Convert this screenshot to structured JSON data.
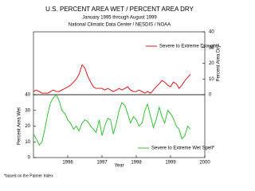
{
  "title": "U.S. PERCENT AREA WET / PERCENT AREA DRY",
  "subtitle": "January 1995 through August 1999",
  "source": "National Climatic Data Center / NESDIS / NOAA",
  "footnote": "*based on the Palmer Index",
  "chart_data": [
    {
      "type": "line",
      "ylabel": "Percent Area Dry",
      "y_axis_side": "right",
      "xlim": [
        1995,
        2000
      ],
      "ylim": [
        0,
        40
      ],
      "yticks": [
        0,
        10,
        20,
        30,
        40
      ],
      "x": [
        1995,
        1995.08,
        1995.17,
        1995.25,
        1995.33,
        1995.42,
        1995.5,
        1995.58,
        1995.67,
        1995.75,
        1995.83,
        1995.92,
        1996,
        1996.08,
        1996.17,
        1996.25,
        1996.33,
        1996.42,
        1996.5,
        1996.58,
        1996.67,
        1996.75,
        1996.83,
        1996.92,
        1997,
        1997.08,
        1997.17,
        1997.25,
        1997.33,
        1997.42,
        1997.5,
        1997.58,
        1997.67,
        1997.75,
        1997.83,
        1997.92,
        1998,
        1998.08,
        1998.17,
        1998.25,
        1998.33,
        1998.42,
        1998.5,
        1998.58,
        1998.67,
        1998.75,
        1998.83,
        1998.92,
        1999,
        1999.08,
        1999.17,
        1999.25,
        1999.33,
        1999.42,
        1999.5,
        1999.58
      ],
      "series": [
        {
          "name": "Severe to Extreme Drought*",
          "color": "#e00000",
          "values": [
            2,
            3,
            2,
            1,
            1,
            1,
            2,
            3,
            2,
            2,
            3,
            4,
            5,
            6,
            8,
            10,
            13,
            19,
            17,
            12,
            8,
            5,
            4,
            4,
            4,
            3,
            4,
            3,
            2,
            3,
            4,
            3,
            4,
            5,
            3,
            2,
            2,
            3,
            2,
            1,
            2,
            1,
            3,
            5,
            7,
            9,
            8,
            6,
            5,
            8,
            7,
            4,
            6,
            9,
            11,
            13
          ]
        }
      ]
    },
    {
      "type": "line",
      "ylabel": "Percent Area Wet",
      "xlabel": "Year",
      "y_axis_side": "left",
      "xlim": [
        1995,
        2000
      ],
      "xticks": [
        1996,
        1997,
        1998,
        1999,
        2000
      ],
      "ylim": [
        0,
        40
      ],
      "yticks": [
        0,
        10,
        20,
        30,
        40
      ],
      "x": [
        1995,
        1995.08,
        1995.17,
        1995.25,
        1995.33,
        1995.42,
        1995.5,
        1995.58,
        1995.67,
        1995.75,
        1995.83,
        1995.92,
        1996,
        1996.08,
        1996.17,
        1996.25,
        1996.33,
        1996.42,
        1996.5,
        1996.58,
        1996.67,
        1996.75,
        1996.83,
        1996.92,
        1997,
        1997.08,
        1997.17,
        1997.25,
        1997.33,
        1997.42,
        1997.5,
        1997.58,
        1997.67,
        1997.75,
        1997.83,
        1997.92,
        1998,
        1998.08,
        1998.17,
        1998.25,
        1998.33,
        1998.42,
        1998.5,
        1998.58,
        1998.67,
        1998.75,
        1998.83,
        1998.92,
        1999,
        1999.08,
        1999.17,
        1999.25,
        1999.33,
        1999.42,
        1999.5,
        1999.58
      ],
      "series": [
        {
          "name": "Severe to Extreme Wet Spell*",
          "color": "#22bb22",
          "values": [
            15,
            12,
            8,
            10,
            18,
            28,
            35,
            38,
            40,
            36,
            30,
            28,
            24,
            22,
            18,
            20,
            17,
            22,
            24,
            23,
            20,
            18,
            16,
            24,
            14,
            20,
            25,
            24,
            15,
            22,
            30,
            35,
            33,
            28,
            22,
            26,
            24,
            20,
            22,
            30,
            34,
            26,
            19,
            24,
            32,
            26,
            22,
            30,
            28,
            25,
            20,
            18,
            12,
            14,
            20,
            18
          ]
        }
      ]
    }
  ]
}
